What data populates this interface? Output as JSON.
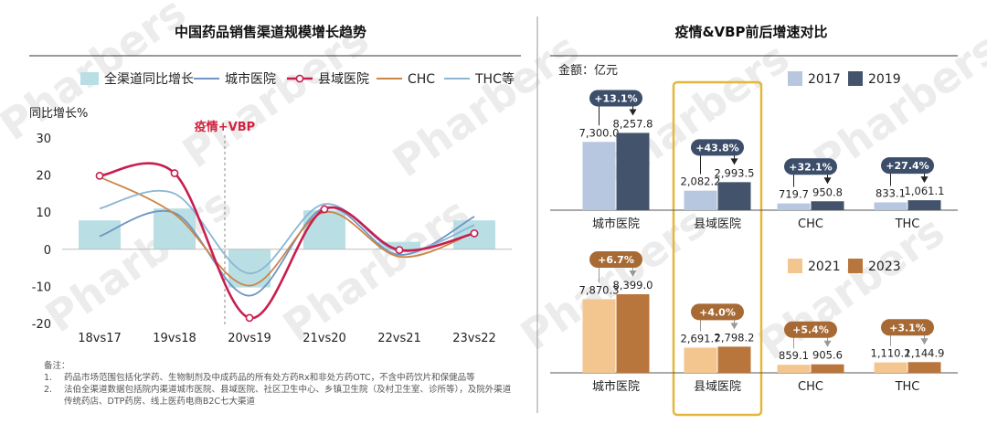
{
  "watermark": "Pharbers",
  "chart_data": [
    {
      "type": "bar+line",
      "title": "中国药品销售渠道规模增长趋势",
      "ylabel": "同比增长%",
      "ylim": [
        -20,
        30
      ],
      "yticks": [
        -20,
        -10,
        0,
        10,
        20,
        30
      ],
      "categories": [
        "18vs17",
        "19vs18",
        "20vs19",
        "21vs20",
        "22vs21",
        "23vs22"
      ],
      "annotation": "疫情+VBP",
      "legend_position": "top",
      "series": [
        {
          "name": "全渠道同比增长",
          "kind": "bar",
          "color": "#b9dfe4",
          "values": [
            7.8,
            11.0,
            -10.3,
            10.5,
            2.0,
            7.8
          ]
        },
        {
          "name": "城市医院",
          "kind": "line",
          "color": "#6f95c4",
          "values": [
            3.5,
            9.8,
            -12.5,
            11.2,
            -1.5,
            8.8
          ]
        },
        {
          "name": "县域医院",
          "kind": "line",
          "color": "#c81e4e",
          "markers": true,
          "values": [
            19.8,
            20.5,
            -18.5,
            10.8,
            -0.2,
            4.3
          ]
        },
        {
          "name": "CHC",
          "kind": "line",
          "color": "#cc8545",
          "values": [
            19.5,
            9.5,
            -9.8,
            10.0,
            -2.0,
            4.5
          ]
        },
        {
          "name": "THC等",
          "kind": "line",
          "color": "#8bb6d3",
          "values": [
            11.0,
            15.0,
            -6.5,
            12.2,
            -0.5,
            6.5
          ]
        }
      ]
    },
    {
      "type": "bar",
      "title": "疫情&VBP前后增速对比",
      "unit_label": "金额：亿元",
      "categories": [
        "城市医院",
        "县域医院",
        "CHC",
        "THC"
      ],
      "panels": [
        {
          "series": [
            {
              "name": "2017",
              "color": "#b8c7e0",
              "values": [
                7300.0,
                2082.2,
                719.7,
                833.1
              ],
              "labels": [
                "7,300.0",
                "2,082.2",
                "719.7",
                "833.1"
              ]
            },
            {
              "name": "2019",
              "color": "#43536b",
              "values": [
                8257.8,
                2993.5,
                950.8,
                1061.1
              ],
              "labels": [
                "8,257.8",
                "2,993.5",
                "950.8",
                "1,061.1"
              ]
            }
          ],
          "growth_labels": [
            "+13.1%",
            "+43.8%",
            "+32.1%",
            "+27.4%"
          ],
          "pill_color": "#3c4e69"
        },
        {
          "series": [
            {
              "name": "2021",
              "color": "#f4c68f",
              "values": [
                7870.3,
                2691.7,
                859.1,
                1110.2
              ],
              "labels": [
                "7,870.3",
                "2,691.7",
                "859.1",
                "1,110.2"
              ]
            },
            {
              "name": "2023",
              "color": "#b9763c",
              "values": [
                8399.0,
                2798.2,
                905.6,
                1144.9
              ],
              "labels": [
                "8,399.0",
                "2,798.2",
                "905.6",
                "1,144.9"
              ]
            }
          ],
          "growth_labels": [
            "+6.7%",
            "+4.0%",
            "+5.4%",
            "+3.1%"
          ],
          "pill_color": "#a86a34"
        }
      ]
    }
  ],
  "notes": {
    "heading": "备注：",
    "items": [
      {
        "num": "1.",
        "text": "药品市场范围包括化学药、生物制剂及中成药品的所有处方药Rx和非处方药OTC，不含中药饮片和保健品等"
      },
      {
        "num": "2.",
        "text": "法伯全渠道数据包括院内渠道城市医院、县域医院、社区卫生中心、乡镇卫生院（及村卫生室、诊所等），及院外渠道传统药店、DTP药房、线上医药电商B2C七大渠道"
      }
    ]
  }
}
